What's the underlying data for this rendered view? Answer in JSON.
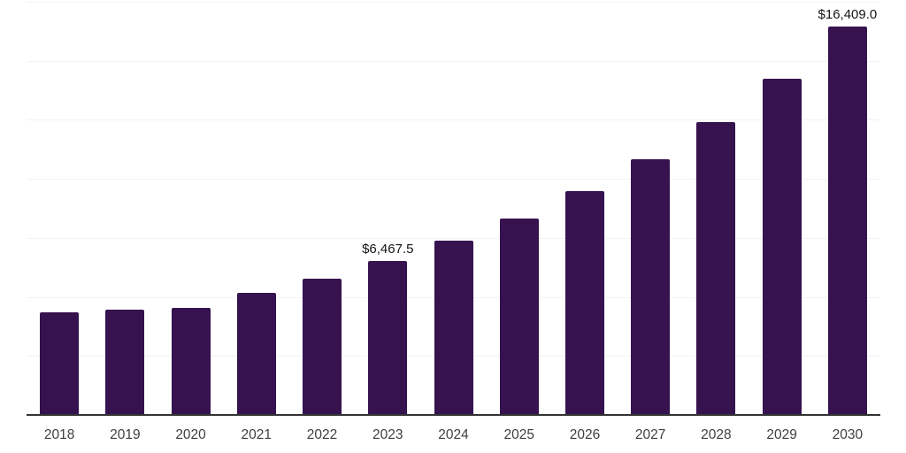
{
  "chart_data": {
    "type": "bar",
    "title": "",
    "xlabel": "",
    "ylabel": "",
    "categories": [
      "2018",
      "2019",
      "2020",
      "2021",
      "2022",
      "2023",
      "2024",
      "2025",
      "2026",
      "2027",
      "2028",
      "2029",
      "2030"
    ],
    "values": [
      4320,
      4420,
      4500,
      5140,
      5720,
      6467.5,
      7340,
      8280,
      9450,
      10790,
      12350,
      14210,
      16409
    ],
    "data_labels": {
      "2023": "$6,467.5",
      "2030": "$16,409.0"
    },
    "ylim": [
      0,
      17500
    ],
    "gridline_step": 2500,
    "grid": "horizontal-only",
    "legend": "none",
    "y_tick_labels_visible": false,
    "bar_color": "#36124F",
    "axis_line_color": "#333333",
    "gridline_color": "#f3f1f3",
    "data_label_color": "#141414",
    "tick_label_color": "#3f3f3f",
    "background_color": "#ffffff"
  }
}
